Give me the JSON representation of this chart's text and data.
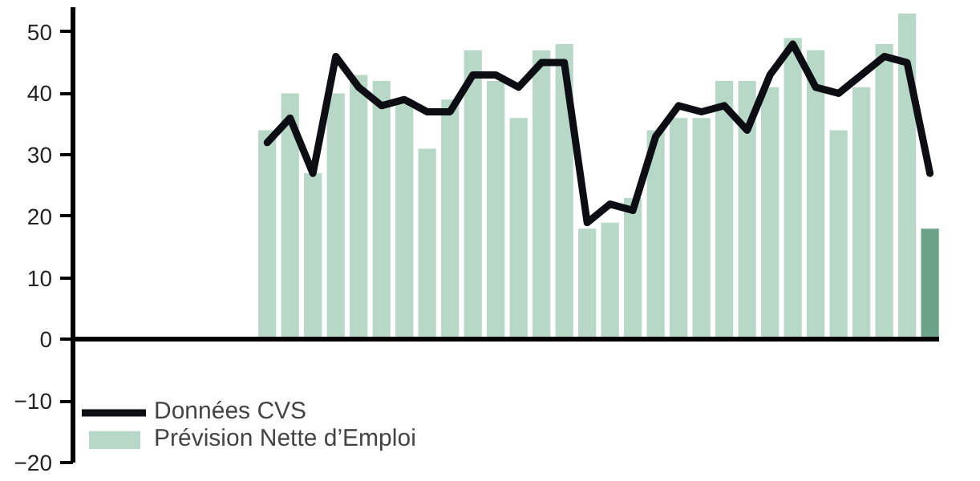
{
  "chart_data": {
    "type": "bar",
    "categories": [
      null,
      null,
      null,
      null,
      null,
      null,
      null,
      null,
      null,
      null,
      null,
      null,
      null,
      null,
      null,
      null,
      null,
      null,
      null,
      null,
      null,
      null,
      null,
      null,
      null,
      null,
      null,
      null,
      null,
      null
    ],
    "series": [
      {
        "name": "Prévision Nette d’Emploi",
        "color": "#b7d7c7",
        "colors": [
          "#b7d7c7",
          "#b7d7c7",
          "#b7d7c7",
          "#b7d7c7",
          "#b7d7c7",
          "#b7d7c7",
          "#b7d7c7",
          "#b7d7c7",
          "#b7d7c7",
          "#b7d7c7",
          "#b7d7c7",
          "#b7d7c7",
          "#b7d7c7",
          "#b7d7c7",
          "#b7d7c7",
          "#b7d7c7",
          "#b7d7c7",
          "#b7d7c7",
          "#b7d7c7",
          "#b7d7c7",
          "#b7d7c7",
          "#b7d7c7",
          "#b7d7c7",
          "#b7d7c7",
          "#b7d7c7",
          "#b7d7c7",
          "#b7d7c7",
          "#b7d7c7",
          "#b7d7c7",
          "#6aa387"
        ],
        "values": [
          34,
          40,
          27,
          40,
          43,
          42,
          39,
          31,
          39,
          47,
          42,
          36,
          47,
          48,
          18,
          19,
          23,
          34,
          36,
          36,
          42,
          42,
          41,
          49,
          47,
          34,
          41,
          48,
          53,
          18
        ]
      },
      {
        "name": "Données CVS",
        "type": "line",
        "color": "#0d0d14",
        "values": [
          32,
          36,
          27,
          46,
          41,
          38,
          39,
          37,
          37,
          43,
          43,
          41,
          45,
          45,
          19,
          22,
          21,
          33,
          38,
          37,
          38,
          34,
          43,
          48,
          41,
          40,
          43,
          46,
          45,
          27
        ]
      }
    ],
    "ylim": [
      -20,
      54
    ],
    "yticks": [
      -20,
      -10,
      0,
      10,
      20,
      30,
      40,
      50
    ],
    "legend": "bottom left",
    "tick_labels": "y"
  }
}
